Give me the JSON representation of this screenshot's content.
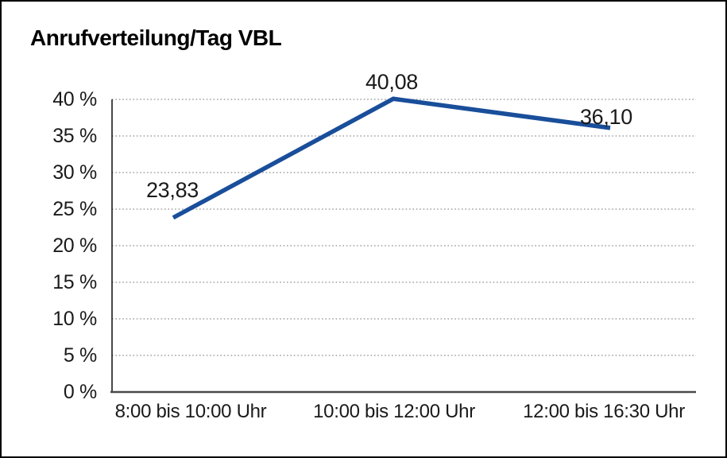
{
  "frame": {
    "background": "#ffffff",
    "border_color": "#000000"
  },
  "chart_data": {
    "type": "line",
    "title": "Anrufverteilung/Tag VBL",
    "categories": [
      "8:00 bis 10:00 Uhr",
      "10:00 bis 12:00 Uhr",
      "12:00 bis 16:30 Uhr"
    ],
    "values": [
      23.83,
      40.08,
      36.1
    ],
    "point_labels": [
      "23,83",
      "40,08",
      "36,10"
    ],
    "xlabel": "",
    "ylabel": "",
    "ylim": [
      0,
      40
    ],
    "y_tick_step": 5,
    "y_tick_labels": [
      "0 %",
      "5 %",
      "10 %",
      "15 %",
      "20 %",
      "25 %",
      "30 %",
      "35 %",
      "40 %"
    ],
    "grid": "horizontal-dotted",
    "legend_position": "none",
    "line_color": "#194E9A",
    "grid_color": "#8f8f8f",
    "axis_color": "#4a4a4a",
    "y_axis_color": "#1a1a1a",
    "text_color": "#1a1a1a"
  }
}
